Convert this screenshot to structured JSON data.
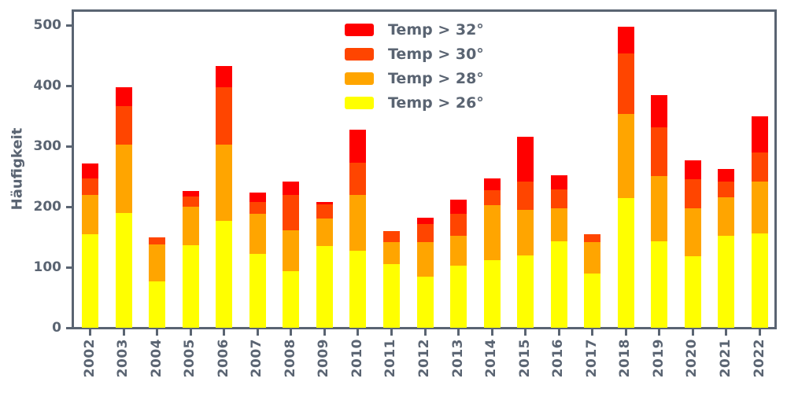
{
  "figure": {
    "ylabel": "Häufigkeit",
    "text_color": "#5A6472",
    "axis_color": "#5A6472",
    "background": "#ffffff"
  },
  "chart_data": {
    "type": "bar",
    "stacked": true,
    "title": "",
    "xlabel": "",
    "ylabel": "Häufigkeit",
    "grid": false,
    "legend_position": "upper center-right, frameless",
    "ylim": [
      0,
      523
    ],
    "yticks": [
      0,
      100,
      200,
      300,
      400,
      500
    ],
    "categories": [
      "2002",
      "2003",
      "2004",
      "2005",
      "2006",
      "2007",
      "2008",
      "2009",
      "2010",
      "2011",
      "2012",
      "2013",
      "2014",
      "2015",
      "2016",
      "2017",
      "2018",
      "2019",
      "2020",
      "2021",
      "2022"
    ],
    "series": [
      {
        "name": "Temp > 26°",
        "color": "#FFFF00",
        "values": [
          155,
          189,
          77,
          137,
          176,
          122,
          94,
          135,
          127,
          105,
          85,
          102,
          112,
          120,
          143,
          90,
          214,
          143,
          118,
          152,
          156
        ]
      },
      {
        "name": "Temp > 28°",
        "color": "#FFA500",
        "values": [
          65,
          114,
          61,
          63,
          127,
          66,
          67,
          46,
          93,
          36,
          56,
          50,
          90,
          75,
          54,
          52,
          139,
          108,
          80,
          63,
          86
        ]
      },
      {
        "name": "Temp > 30°",
        "color": "#FF4500",
        "values": [
          27,
          63,
          12,
          17,
          95,
          20,
          59,
          23,
          53,
          19,
          31,
          36,
          25,
          47,
          32,
          12,
          100,
          80,
          48,
          26,
          47
        ]
      },
      {
        "name": "Temp > 32°",
        "color": "#FF0000",
        "values": [
          24,
          32,
          0,
          9,
          34,
          15,
          21,
          4,
          54,
          0,
          10,
          24,
          20,
          73,
          23,
          0,
          45,
          53,
          31,
          21,
          61
        ]
      }
    ],
    "stack_totals": [
      271,
      398,
      150,
      226,
      432,
      223,
      241,
      208,
      327,
      160,
      182,
      212,
      247,
      315,
      252,
      154,
      498,
      384,
      277,
      262,
      350
    ],
    "legend_order_top_to_bottom": [
      "Temp > 32°",
      "Temp > 30°",
      "Temp > 28°",
      "Temp > 26°"
    ]
  }
}
